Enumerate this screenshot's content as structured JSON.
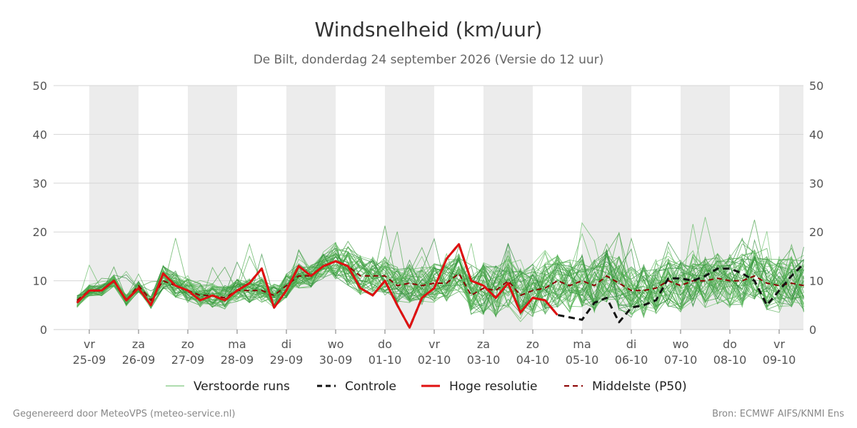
{
  "footer": {
    "generated": "Gegenereerd door MeteoVPS (meteo-service.nl)",
    "source": "Bron: ECMWF AIFS/KNMI Ens"
  },
  "chart_data": {
    "type": "line",
    "title": "Windsnelheid (km/uur)",
    "subtitle": "De Bilt, donderdag 24 september 2026 (Versie do 12 uur)",
    "ylim": [
      0,
      50
    ],
    "yticks": [
      0,
      10,
      20,
      30,
      40,
      50
    ],
    "xlim": [
      -0.25,
      14.5
    ],
    "grid": true,
    "legend_position": "bottom",
    "x_ticks": [
      {
        "day": "vr",
        "date": "25-09"
      },
      {
        "day": "za",
        "date": "26-09"
      },
      {
        "day": "zo",
        "date": "27-09"
      },
      {
        "day": "ma",
        "date": "28-09"
      },
      {
        "day": "di",
        "date": "29-09"
      },
      {
        "day": "wo",
        "date": "30-09"
      },
      {
        "day": "do",
        "date": "01-10"
      },
      {
        "day": "vr",
        "date": "02-10"
      },
      {
        "day": "za",
        "date": "03-10"
      },
      {
        "day": "zo",
        "date": "04-10"
      },
      {
        "day": "ma",
        "date": "05-10"
      },
      {
        "day": "di",
        "date": "06-10"
      },
      {
        "day": "wo",
        "date": "07-10"
      },
      {
        "day": "do",
        "date": "08-10"
      },
      {
        "day": "vr",
        "date": "09-10"
      }
    ],
    "shaded_days": [
      0,
      2,
      4,
      6,
      8,
      10,
      12,
      14
    ],
    "legend": [
      {
        "name": "Verstoorde runs",
        "color": "#5cb85c",
        "style": "thin"
      },
      {
        "name": "Controle",
        "color": "#111111",
        "style": "dashed"
      },
      {
        "name": "Hoge resolutie",
        "color": "#e01010",
        "style": "solid"
      },
      {
        "name": "Middelste (P50)",
        "color": "#8b0000",
        "style": "dashed"
      }
    ],
    "series": [
      {
        "name": "Hoge resolutie",
        "color": "#e01010",
        "x": [
          -0.25,
          0,
          0.25,
          0.5,
          0.75,
          1,
          1.25,
          1.5,
          1.75,
          2,
          2.25,
          2.5,
          2.75,
          3,
          3.25,
          3.5,
          3.75,
          4,
          4.25,
          4.5,
          4.75,
          5,
          5.25,
          5.5,
          5.75,
          6,
          6.25,
          6.5,
          6.75,
          7,
          7.25,
          7.5,
          7.75,
          8,
          8.25,
          8.5,
          8.75,
          9,
          9.25,
          9.5
        ],
        "values": [
          5.5,
          8,
          8,
          10,
          6,
          8.5,
          5,
          11.5,
          9,
          8,
          6,
          7,
          6,
          8,
          9.5,
          12.5,
          4.5,
          8,
          13,
          11,
          13,
          14,
          13,
          8.5,
          7,
          10,
          5,
          0.4,
          6.5,
          8.5,
          14.5,
          17.5,
          10,
          9,
          6.5,
          9.5,
          3.5,
          6.5,
          6,
          3
        ]
      },
      {
        "name": "Controle",
        "color": "#111111",
        "x": [
          -0.25,
          0,
          0.25,
          0.5,
          0.75,
          1,
          1.25,
          1.5,
          1.75,
          2,
          2.25,
          2.5,
          2.75,
          3,
          3.25,
          3.5,
          3.75,
          4,
          4.25,
          4.5,
          4.75,
          5,
          5.25,
          5.5,
          5.75,
          6,
          6.25,
          6.5,
          6.75,
          7,
          7.25,
          7.5,
          7.75,
          8,
          8.25,
          8.5,
          8.75,
          9,
          9.25,
          9.5,
          9.75,
          10,
          10.25,
          10.5,
          10.75,
          11,
          11.25,
          11.5,
          11.75,
          12,
          12.25,
          12.5,
          12.75,
          13,
          13.25,
          13.5,
          13.75,
          14,
          14.25,
          14.5
        ],
        "values": [
          5.5,
          8,
          8,
          10,
          6,
          8.5,
          5,
          11.5,
          9,
          8,
          6,
          7,
          6,
          8,
          9.5,
          12.5,
          4.5,
          8,
          13,
          11,
          13,
          14,
          13,
          8.5,
          7,
          10,
          5,
          0.4,
          6.5,
          8.5,
          14.5,
          17.5,
          10,
          9,
          6.5,
          9.5,
          3.5,
          6.5,
          6,
          3,
          2.5,
          2,
          5.5,
          6.5,
          1.5,
          4.5,
          5,
          6,
          10.5,
          10.5,
          10,
          11,
          12.5,
          12.5,
          11.5,
          10,
          5,
          8,
          11,
          13.5
        ]
      },
      {
        "name": "Middelste (P50)",
        "color": "#8b0000",
        "x": [
          -0.25,
          0,
          0.25,
          0.5,
          0.75,
          1,
          1.25,
          1.5,
          1.75,
          2,
          2.25,
          2.5,
          2.75,
          3,
          3.25,
          3.5,
          3.75,
          4,
          4.25,
          4.5,
          4.75,
          5,
          5.25,
          5.5,
          5.75,
          6,
          6.25,
          6.5,
          6.75,
          7,
          7.25,
          7.5,
          7.75,
          8,
          8.25,
          8.5,
          8.75,
          9,
          9.25,
          9.5,
          9.75,
          10,
          10.25,
          10.5,
          10.75,
          11,
          11.25,
          11.5,
          11.75,
          12,
          12.25,
          12.5,
          12.75,
          13,
          13.25,
          13.5,
          13.75,
          14,
          14.25,
          14.5
        ],
        "values": [
          6,
          8,
          8,
          10,
          6,
          9,
          6,
          10,
          9,
          8,
          7,
          7,
          6.5,
          8,
          8,
          8,
          7,
          9,
          11,
          11,
          13,
          14,
          13,
          11,
          11,
          11,
          9,
          9.5,
          9,
          9.5,
          9.5,
          11.5,
          7,
          8.5,
          8,
          10,
          7,
          8,
          8.5,
          10,
          9,
          10,
          9,
          11,
          9.5,
          8,
          8,
          8.5,
          10,
          9,
          10,
          10,
          10.5,
          10,
          10,
          11,
          9.5,
          9,
          9.5,
          9
        ]
      }
    ],
    "ensemble_members": 50
  }
}
